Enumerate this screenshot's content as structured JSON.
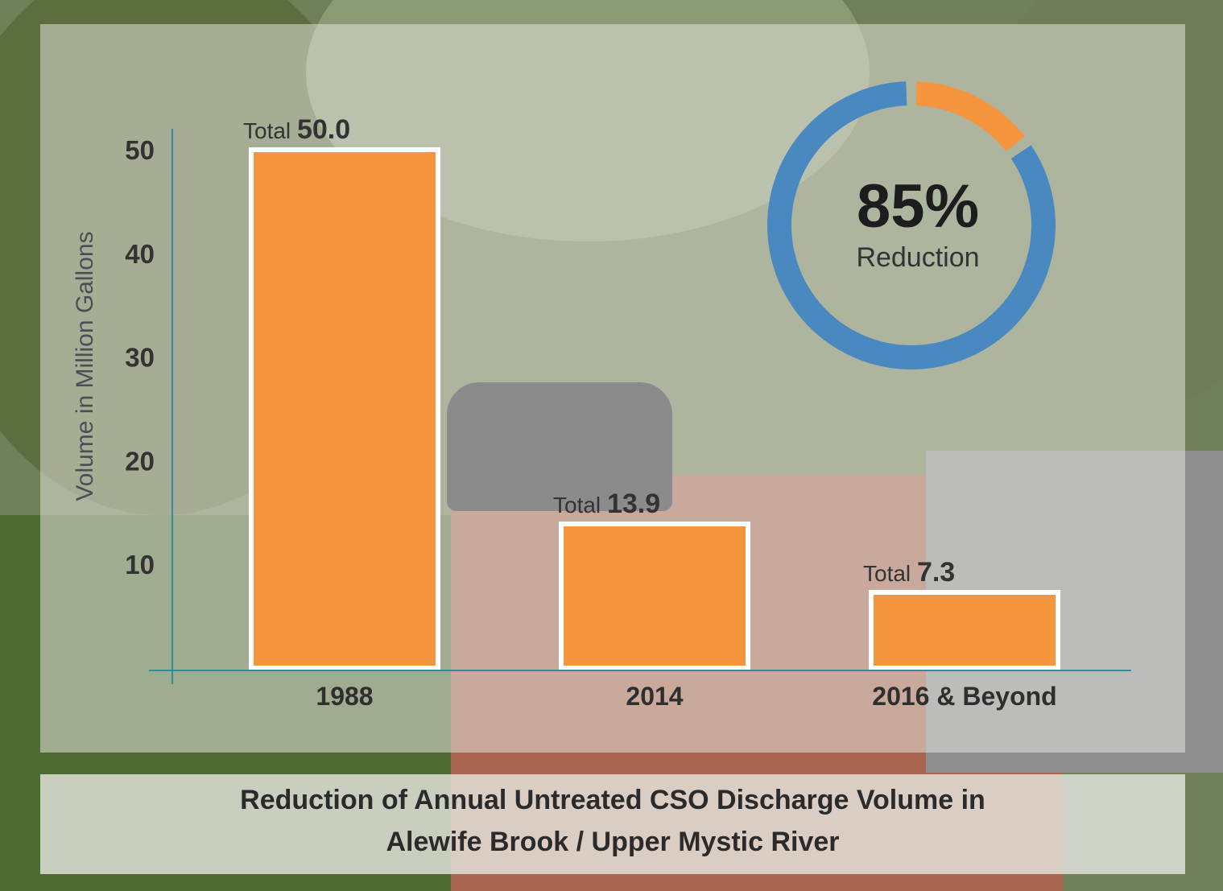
{
  "colors": {
    "bar": "#f5963f",
    "bar_outline": "#ffffff",
    "axis": "#2f8f99",
    "donut_main": "#4a88c0",
    "donut_accent": "#f5963f"
  },
  "caption": {
    "line1": "Reduction of Annual Untreated CSO Discharge Volume in",
    "line2": "Alewife Brook / Upper Mystic River"
  },
  "donut": {
    "percent_label": "85%",
    "sub_label": "Reduction",
    "reduction_fraction": 0.85
  },
  "chart_data": {
    "type": "bar",
    "title": "Reduction of Annual Untreated CSO Discharge Volume in Alewife Brook / Upper Mystic River",
    "xlabel": "",
    "ylabel": "Volume in Million Gallons",
    "categories": [
      "1988",
      "2014",
      "2016 & Beyond"
    ],
    "values": [
      50.0,
      13.9,
      7.3
    ],
    "value_labels": [
      "50.0",
      "13.9",
      "7.3"
    ],
    "value_prefix": "Total",
    "yticks": [
      "10",
      "20",
      "30",
      "40",
      "50"
    ],
    "ytick_values": [
      10,
      20,
      30,
      40,
      50
    ],
    "ylim": [
      0,
      50
    ],
    "grid": false,
    "legend": false
  }
}
